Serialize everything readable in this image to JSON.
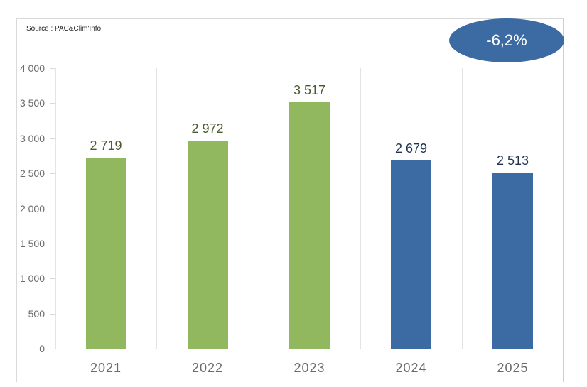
{
  "source": "Source : PAC&Clim'Info",
  "badge": {
    "text": "-6,2%",
    "color": "#3b6ba2"
  },
  "colors": {
    "green": "#92b85f",
    "blue": "#3b6ba2",
    "green_label": "#4a5a2e",
    "blue_label": "#1f3350"
  },
  "y_ticks": [
    "4 000",
    "3 500",
    "3 000",
    "2 500",
    "2 000",
    "1 500",
    "1 000",
    "500",
    "0"
  ],
  "bars": [
    {
      "year": "2021",
      "value_label": "2 719",
      "value": 2719,
      "color": "green"
    },
    {
      "year": "2022",
      "value_label": "2 972",
      "value": 2972,
      "color": "green"
    },
    {
      "year": "2023",
      "value_label": "3 517",
      "value": 3517,
      "color": "green"
    },
    {
      "year": "2024",
      "value_label": "2 679",
      "value": 2679,
      "color": "blue"
    },
    {
      "year": "2025",
      "value_label": "2 513",
      "value": 2513,
      "color": "blue"
    }
  ],
  "chart_data": {
    "type": "bar",
    "title": "",
    "annotation": "-6,2%",
    "source": "Source : PAC&Clim'Info",
    "categories": [
      "2021",
      "2022",
      "2023",
      "2024",
      "2025"
    ],
    "values": [
      2719,
      2972,
      3517,
      2679,
      2513
    ],
    "data_labels": [
      "2 719",
      "2 972",
      "3 517",
      "2 679",
      "2 513"
    ],
    "bar_colors": [
      "#92b85f",
      "#92b85f",
      "#92b85f",
      "#3b6ba2",
      "#3b6ba2"
    ],
    "xlabel": "",
    "ylabel": "",
    "ylim": [
      0,
      4000
    ],
    "y_ticks": [
      0,
      500,
      1000,
      1500,
      2000,
      2500,
      3000,
      3500,
      4000
    ],
    "grid": "vertical category separators",
    "legend": "none"
  }
}
